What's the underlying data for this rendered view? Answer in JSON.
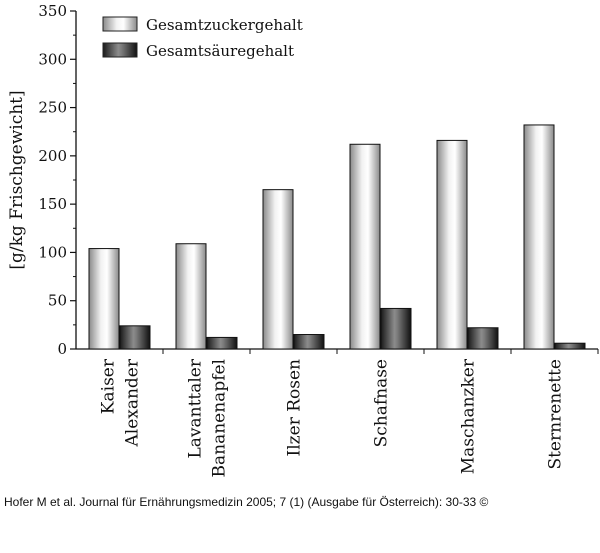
{
  "chart_data": {
    "type": "bar",
    "title": "",
    "xlabel": "",
    "ylabel": "[g/kg Frischgewicht]",
    "ylim": [
      0,
      350
    ],
    "yticks": [
      "0",
      "50",
      "100",
      "150",
      "200",
      "250",
      "300",
      "350"
    ],
    "categories": [
      [
        "Kaiser",
        "Alexander"
      ],
      [
        "Lavanttaler",
        "Bananenapfel"
      ],
      [
        "Ilzer Rosen"
      ],
      [
        "Schafnase"
      ],
      [
        "Maschanzker"
      ],
      [
        "Sternrenette"
      ]
    ],
    "series": [
      {
        "name": "Gesamtzuckergehalt",
        "values": [
          104,
          109,
          165,
          212,
          216,
          232
        ]
      },
      {
        "name": "Gesamtsäuregehalt",
        "values": [
          24,
          12,
          15,
          42,
          22,
          6
        ]
      }
    ],
    "legend_position": "top-left"
  },
  "citation": "Hofer M et al. Journal für Ernährungsmedizin 2005; 7 (1) (Ausgabe für Österreich): 30-33 ©"
}
